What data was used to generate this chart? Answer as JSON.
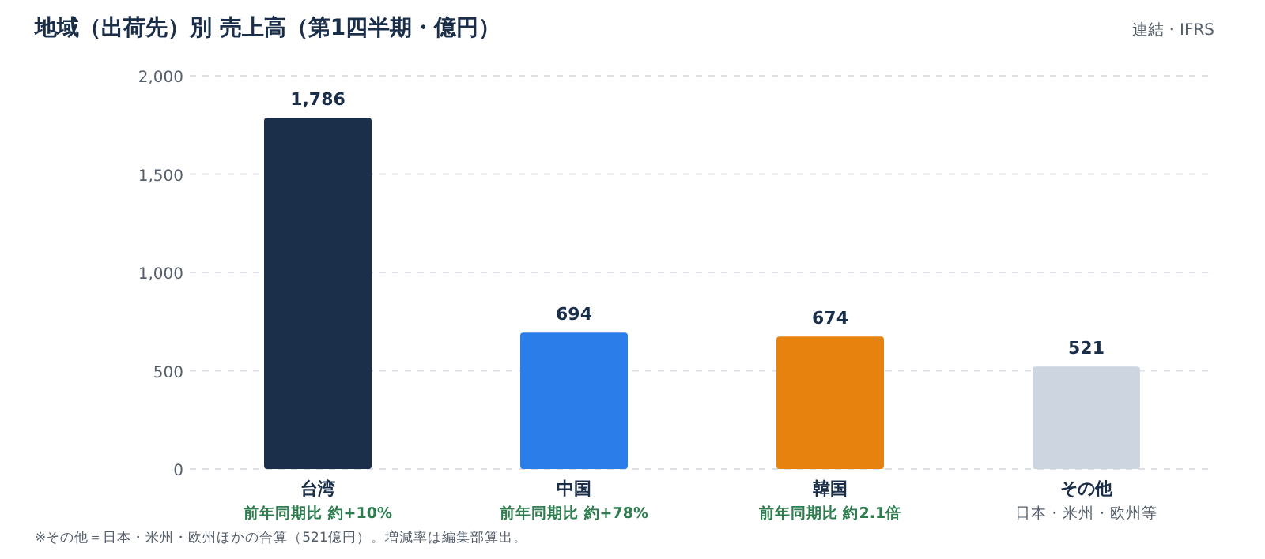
{
  "chart_data": {
    "type": "bar",
    "title": "地域（出荷先）別 売上高（第1四半期・億円）",
    "subtitle": "連結・IFRS",
    "categories": [
      "台湾",
      "中国",
      "韓国",
      "その他"
    ],
    "values": [
      1786,
      694,
      674,
      521
    ],
    "value_labels": [
      "1,786",
      "694",
      "674",
      "521"
    ],
    "colors": [
      "#1b2f4b",
      "#2b7de9",
      "#e8820e",
      "#cdd5e0"
    ],
    "ylim": [
      0,
      2000
    ],
    "yticks": [
      0,
      {
        "value": 500,
        "label": "500"
      },
      {
        "value": 1000,
        "label": "1,000"
      },
      {
        "value": 1500,
        "label": "1,500"
      },
      {
        "value": 2000,
        "label": "2,000"
      }
    ],
    "grid": "y",
    "annotations": [
      "前年同期比 約+10%",
      "前年同期比 約+78%",
      "前年同期比 約2.1倍",
      "日本・米州・欧州等",
      "※その他＝日本・米州・欧州ほかの合算（521億円）。増減率は編集部算出。"
    ]
  }
}
